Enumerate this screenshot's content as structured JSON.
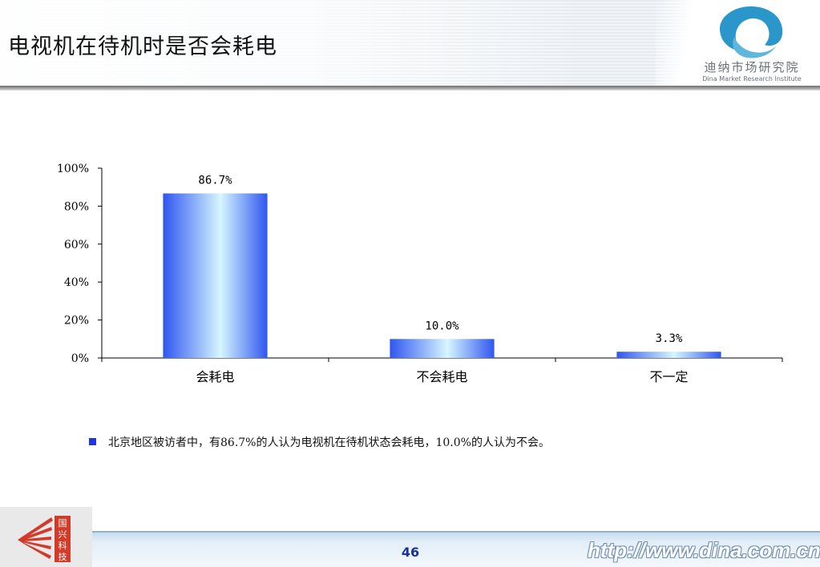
{
  "header": {
    "title": "电视机在待机时是否会耗电",
    "brand_name": "迪纳市场研究院",
    "brand_subtitle": "Dina Market Research Institute"
  },
  "chart_data": {
    "type": "bar",
    "categories": [
      "会耗电",
      "不会耗电",
      "不一定"
    ],
    "values": [
      86.7,
      10.0,
      3.3
    ],
    "data_labels": [
      "86.7%",
      "10.0%",
      "3.3%"
    ],
    "yticks": [
      "0%",
      "20%",
      "40%",
      "60%",
      "80%",
      "100%"
    ],
    "ylim": [
      0,
      100
    ],
    "grid": false,
    "legend": "none",
    "bar_color": "#3a63f2"
  },
  "note": {
    "text": "北京地区被访者中，有86.7%的人认为电视机在待机状态会耗电，10.0%的人认为不会。"
  },
  "footer": {
    "page_number": "46",
    "url": "http://www.dina.com.cn",
    "logo_text": "国兴科技"
  }
}
